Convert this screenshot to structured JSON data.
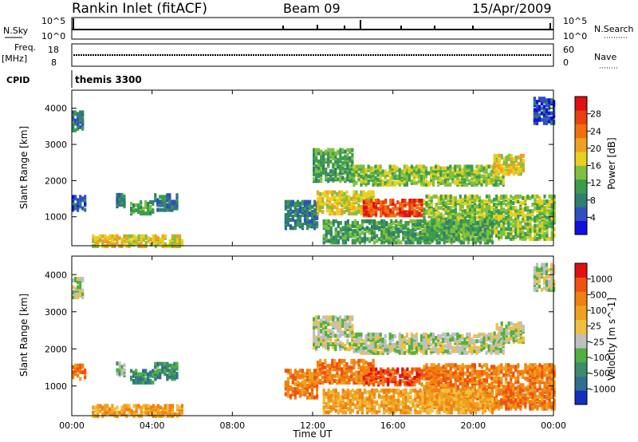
{
  "header": {
    "station": "Rankin Inlet (fitACF)",
    "beam": "Beam 09",
    "date": "15/Apr/2009"
  },
  "aux_panels": {
    "nsky_label": "N.Sky",
    "nsky_ticks": [
      "10^5",
      "10^0"
    ],
    "nsearch_label": "N.Search",
    "nsearch_ticks": [
      "10^5",
      "10^0"
    ],
    "freq_label": "Freq.",
    "freq_unit": "[MHz]",
    "freq_ticks": [
      "18",
      "8"
    ],
    "nave_label": "Nave",
    "nave_ticks": [
      "60",
      "0"
    ],
    "cpid_label": "CPID",
    "cpid_value": "themis 3300"
  },
  "chart_data": [
    {
      "type": "heatmap",
      "name": "power",
      "ylabel": "Slant Range [km]",
      "xlabel": "Time UT",
      "xlim": [
        0,
        24
      ],
      "ylim": [
        200,
        4500
      ],
      "x_ticks": [
        "00:00",
        "04:00",
        "08:00",
        "12:00",
        "16:00",
        "20:00",
        "00:00"
      ],
      "y_ticks": [
        1000,
        2000,
        3000,
        4000
      ],
      "colorbar": {
        "label": "Power [dB]",
        "ticks": [
          "4",
          "8",
          "12",
          "16",
          "20",
          "24",
          "28"
        ],
        "colors": [
          "#1010e0",
          "#3050c0",
          "#2f7f6f",
          "#3c9c4c",
          "#80c040",
          "#e8d020",
          "#f0a020",
          "#f07010",
          "#e84010",
          "#e01010"
        ]
      },
      "regions": [
        {
          "t0": 0.0,
          "t1": 0.6,
          "r0": 3400,
          "r1": 3900,
          "level": 2
        },
        {
          "t0": 0.0,
          "t1": 0.7,
          "r0": 1200,
          "r1": 1600,
          "level": 1
        },
        {
          "t0": 2.2,
          "t1": 2.6,
          "r0": 1300,
          "r1": 1650,
          "level": 2
        },
        {
          "t0": 2.9,
          "t1": 4.0,
          "r0": 1100,
          "r1": 1450,
          "level": 3
        },
        {
          "t0": 4.1,
          "t1": 5.2,
          "r0": 1200,
          "r1": 1650,
          "level": 2
        },
        {
          "t0": 1.0,
          "t1": 5.5,
          "r0": 200,
          "r1": 500,
          "level": 5
        },
        {
          "t0": 10.6,
          "t1": 12.2,
          "r0": 700,
          "r1": 1450,
          "level": 2
        },
        {
          "t0": 12.0,
          "t1": 14.0,
          "r0": 2000,
          "r1": 2900,
          "level": 3
        },
        {
          "t0": 14.0,
          "t1": 21.5,
          "r0": 1900,
          "r1": 2400,
          "level": 4
        },
        {
          "t0": 12.2,
          "t1": 15.0,
          "r0": 1100,
          "r1": 1700,
          "level": 5
        },
        {
          "t0": 14.5,
          "t1": 17.5,
          "r0": 1050,
          "r1": 1500,
          "level": 8
        },
        {
          "t0": 17.5,
          "t1": 24.0,
          "r0": 400,
          "r1": 1600,
          "level": 4
        },
        {
          "t0": 12.5,
          "t1": 21.0,
          "r0": 300,
          "r1": 900,
          "level": 3
        },
        {
          "t0": 21.0,
          "t1": 22.5,
          "r0": 2200,
          "r1": 2700,
          "level": 5
        },
        {
          "t0": 23.0,
          "t1": 24.0,
          "r0": 3600,
          "r1": 4300,
          "level": 1
        }
      ]
    },
    {
      "type": "heatmap",
      "name": "velocity",
      "ylabel": "Slant Range [km]",
      "xlabel": "Time UT",
      "xlim": [
        0,
        24
      ],
      "ylim": [
        200,
        4500
      ],
      "x_ticks": [
        "00:00",
        "04:00",
        "08:00",
        "12:00",
        "16:00",
        "20:00",
        "00:00"
      ],
      "y_ticks": [
        1000,
        2000,
        3000,
        4000
      ],
      "colorbar": {
        "label": "Velocity [m s^-1]",
        "ticks": [
          "1000",
          "500",
          "100",
          "25",
          "-25",
          "-100",
          "-500",
          "-1000"
        ],
        "colors": [
          "#1030c0",
          "#2f6f8f",
          "#3c8c6c",
          "#50b040",
          "#c0c0c0",
          "#f0c040",
          "#f0a020",
          "#f08010",
          "#f05010",
          "#e01010"
        ]
      },
      "regions": [
        {
          "t0": 0.0,
          "t1": 0.6,
          "r0": 3400,
          "r1": 3900,
          "level": 4
        },
        {
          "t0": 0.0,
          "t1": 0.7,
          "r0": 1200,
          "r1": 1600,
          "level": 7
        },
        {
          "t0": 2.2,
          "t1": 2.6,
          "r0": 1300,
          "r1": 1650,
          "level": 3
        },
        {
          "t0": 2.9,
          "t1": 4.0,
          "r0": 1100,
          "r1": 1450,
          "level": 2
        },
        {
          "t0": 4.1,
          "t1": 5.2,
          "r0": 1200,
          "r1": 1650,
          "level": 2
        },
        {
          "t0": 1.0,
          "t1": 5.5,
          "r0": 200,
          "r1": 500,
          "level": 6
        },
        {
          "t0": 10.6,
          "t1": 12.2,
          "r0": 700,
          "r1": 1450,
          "level": 7
        },
        {
          "t0": 12.0,
          "t1": 14.0,
          "r0": 2000,
          "r1": 2900,
          "level": 4
        },
        {
          "t0": 14.0,
          "t1": 21.5,
          "r0": 1900,
          "r1": 2400,
          "level": 4
        },
        {
          "t0": 12.2,
          "t1": 15.0,
          "r0": 1100,
          "r1": 1700,
          "level": 7
        },
        {
          "t0": 14.5,
          "t1": 17.5,
          "r0": 1050,
          "r1": 1500,
          "level": 8
        },
        {
          "t0": 17.5,
          "t1": 24.0,
          "r0": 400,
          "r1": 1600,
          "level": 7
        },
        {
          "t0": 12.5,
          "t1": 21.0,
          "r0": 300,
          "r1": 900,
          "level": 6
        },
        {
          "t0": 21.0,
          "t1": 22.5,
          "r0": 2200,
          "r1": 2700,
          "level": 4
        },
        {
          "t0": 23.0,
          "t1": 24.0,
          "r0": 3600,
          "r1": 4300,
          "level": 4
        }
      ]
    }
  ]
}
